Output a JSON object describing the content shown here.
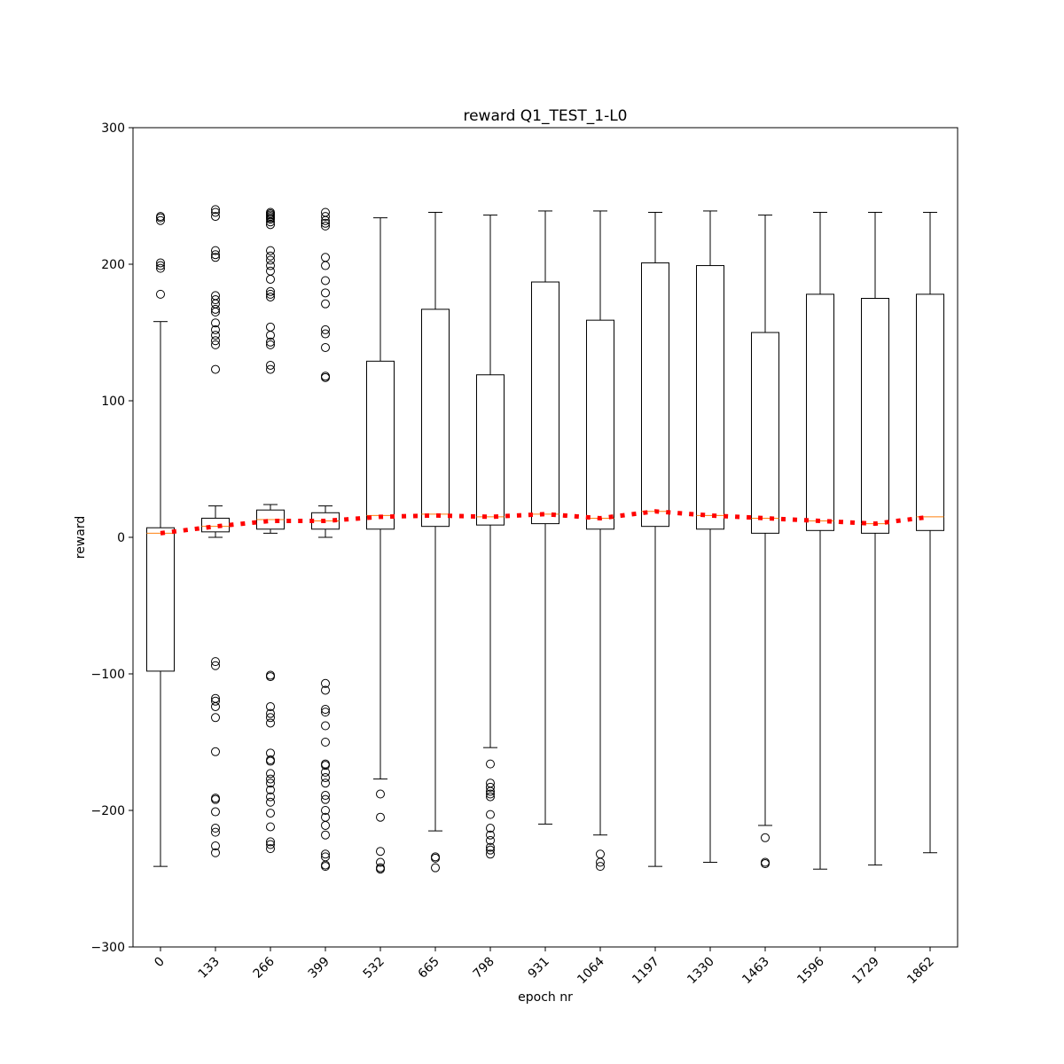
{
  "chart_data": {
    "type": "box",
    "title": "reward Q1_TEST_1-L0",
    "xlabel": "epoch nr",
    "ylabel": "reward",
    "ylim": [
      -300,
      300
    ],
    "yticks": [
      -300,
      -200,
      -100,
      0,
      100,
      200,
      300
    ],
    "ytick_labels": [
      "−300",
      "−200",
      "−100",
      "0",
      "100",
      "200",
      "300"
    ],
    "categories": [
      "0",
      "133",
      "266",
      "399",
      "532",
      "665",
      "798",
      "931",
      "1064",
      "1197",
      "1330",
      "1463",
      "1596",
      "1729",
      "1862"
    ],
    "grid": false,
    "colors": {
      "box": "#000000",
      "median": "#ff7f0e",
      "mean_line": "#ff0000",
      "flier": "#000000"
    },
    "boxes": [
      {
        "q1": -98,
        "median": 3,
        "q3": 7,
        "whisker_low": -241,
        "whisker_high": 158,
        "fliers": [
          178,
          197,
          199,
          201,
          232,
          234,
          235
        ]
      },
      {
        "q1": 4,
        "median": 8,
        "q3": 14,
        "whisker_low": 0,
        "whisker_high": 23,
        "fliers": [
          123,
          141,
          144,
          148,
          152,
          157,
          165,
          167,
          171,
          174,
          177,
          205,
          207,
          210,
          235,
          238,
          240,
          -91,
          -94,
          -118,
          -120,
          -124,
          -132,
          -157,
          -191,
          -192,
          -201,
          -213,
          -216,
          -226,
          -231
        ]
      },
      {
        "q1": 6,
        "median": 13,
        "q3": 20,
        "whisker_low": 3,
        "whisker_high": 24,
        "fliers": [
          123,
          126,
          141,
          143,
          148,
          154,
          176,
          178,
          180,
          189,
          195,
          199,
          203,
          206,
          210,
          229,
          231,
          233,
          234,
          235,
          236,
          237,
          238,
          -101,
          -102,
          -124,
          -129,
          -132,
          -136,
          -158,
          -163,
          -164,
          -173,
          -177,
          -180,
          -185,
          -190,
          -194,
          -202,
          -212,
          -223,
          -225,
          -228
        ]
      },
      {
        "q1": 6,
        "median": 12,
        "q3": 18,
        "whisker_low": 0,
        "whisker_high": 23,
        "fliers": [
          117,
          118,
          139,
          149,
          152,
          171,
          179,
          188,
          199,
          205,
          228,
          230,
          232,
          235,
          238,
          -107,
          -112,
          -126,
          -128,
          -138,
          -150,
          -166,
          -167,
          -172,
          -176,
          -180,
          -189,
          -192,
          -200,
          -205,
          -211,
          -218,
          -232,
          -234,
          -240,
          -241
        ]
      },
      {
        "q1": 6,
        "median": 16,
        "q3": 129,
        "whisker_low": -177,
        "whisker_high": 234,
        "fliers": [
          -188,
          -205,
          -230,
          -238,
          -242,
          -243
        ]
      },
      {
        "q1": 8,
        "median": 17,
        "q3": 167,
        "whisker_low": -215,
        "whisker_high": 238,
        "fliers": [
          -234,
          -235,
          -242
        ]
      },
      {
        "q1": 9,
        "median": 15,
        "q3": 119,
        "whisker_low": -154,
        "whisker_high": 236,
        "fliers": [
          -166,
          -180,
          -183,
          -186,
          -188,
          -190,
          -203,
          -213,
          -218,
          -222,
          -227,
          -229,
          -232
        ]
      },
      {
        "q1": 10,
        "median": 17,
        "q3": 187,
        "whisker_low": -210,
        "whisker_high": 239,
        "fliers": []
      },
      {
        "q1": 6,
        "median": 14,
        "q3": 159,
        "whisker_low": -218,
        "whisker_high": 239,
        "fliers": [
          -232,
          -238,
          -241
        ]
      },
      {
        "q1": 8,
        "median": 19,
        "q3": 201,
        "whisker_low": -241,
        "whisker_high": 238,
        "fliers": []
      },
      {
        "q1": 6,
        "median": 16,
        "q3": 199,
        "whisker_low": -238,
        "whisker_high": 239,
        "fliers": []
      },
      {
        "q1": 3,
        "median": 14,
        "q3": 150,
        "whisker_low": -211,
        "whisker_high": 236,
        "fliers": [
          -220,
          -238,
          -239
        ]
      },
      {
        "q1": 5,
        "median": 12,
        "q3": 178,
        "whisker_low": -243,
        "whisker_high": 238,
        "fliers": []
      },
      {
        "q1": 3,
        "median": 10,
        "q3": 175,
        "whisker_low": -240,
        "whisker_high": 238,
        "fliers": []
      },
      {
        "q1": 5,
        "median": 15,
        "q3": 178,
        "whisker_low": -231,
        "whisker_high": 238,
        "fliers": []
      }
    ],
    "mean_series": [
      3,
      8,
      12,
      12,
      15,
      16,
      15,
      17,
      14,
      19,
      16,
      14,
      12,
      10,
      15
    ]
  }
}
